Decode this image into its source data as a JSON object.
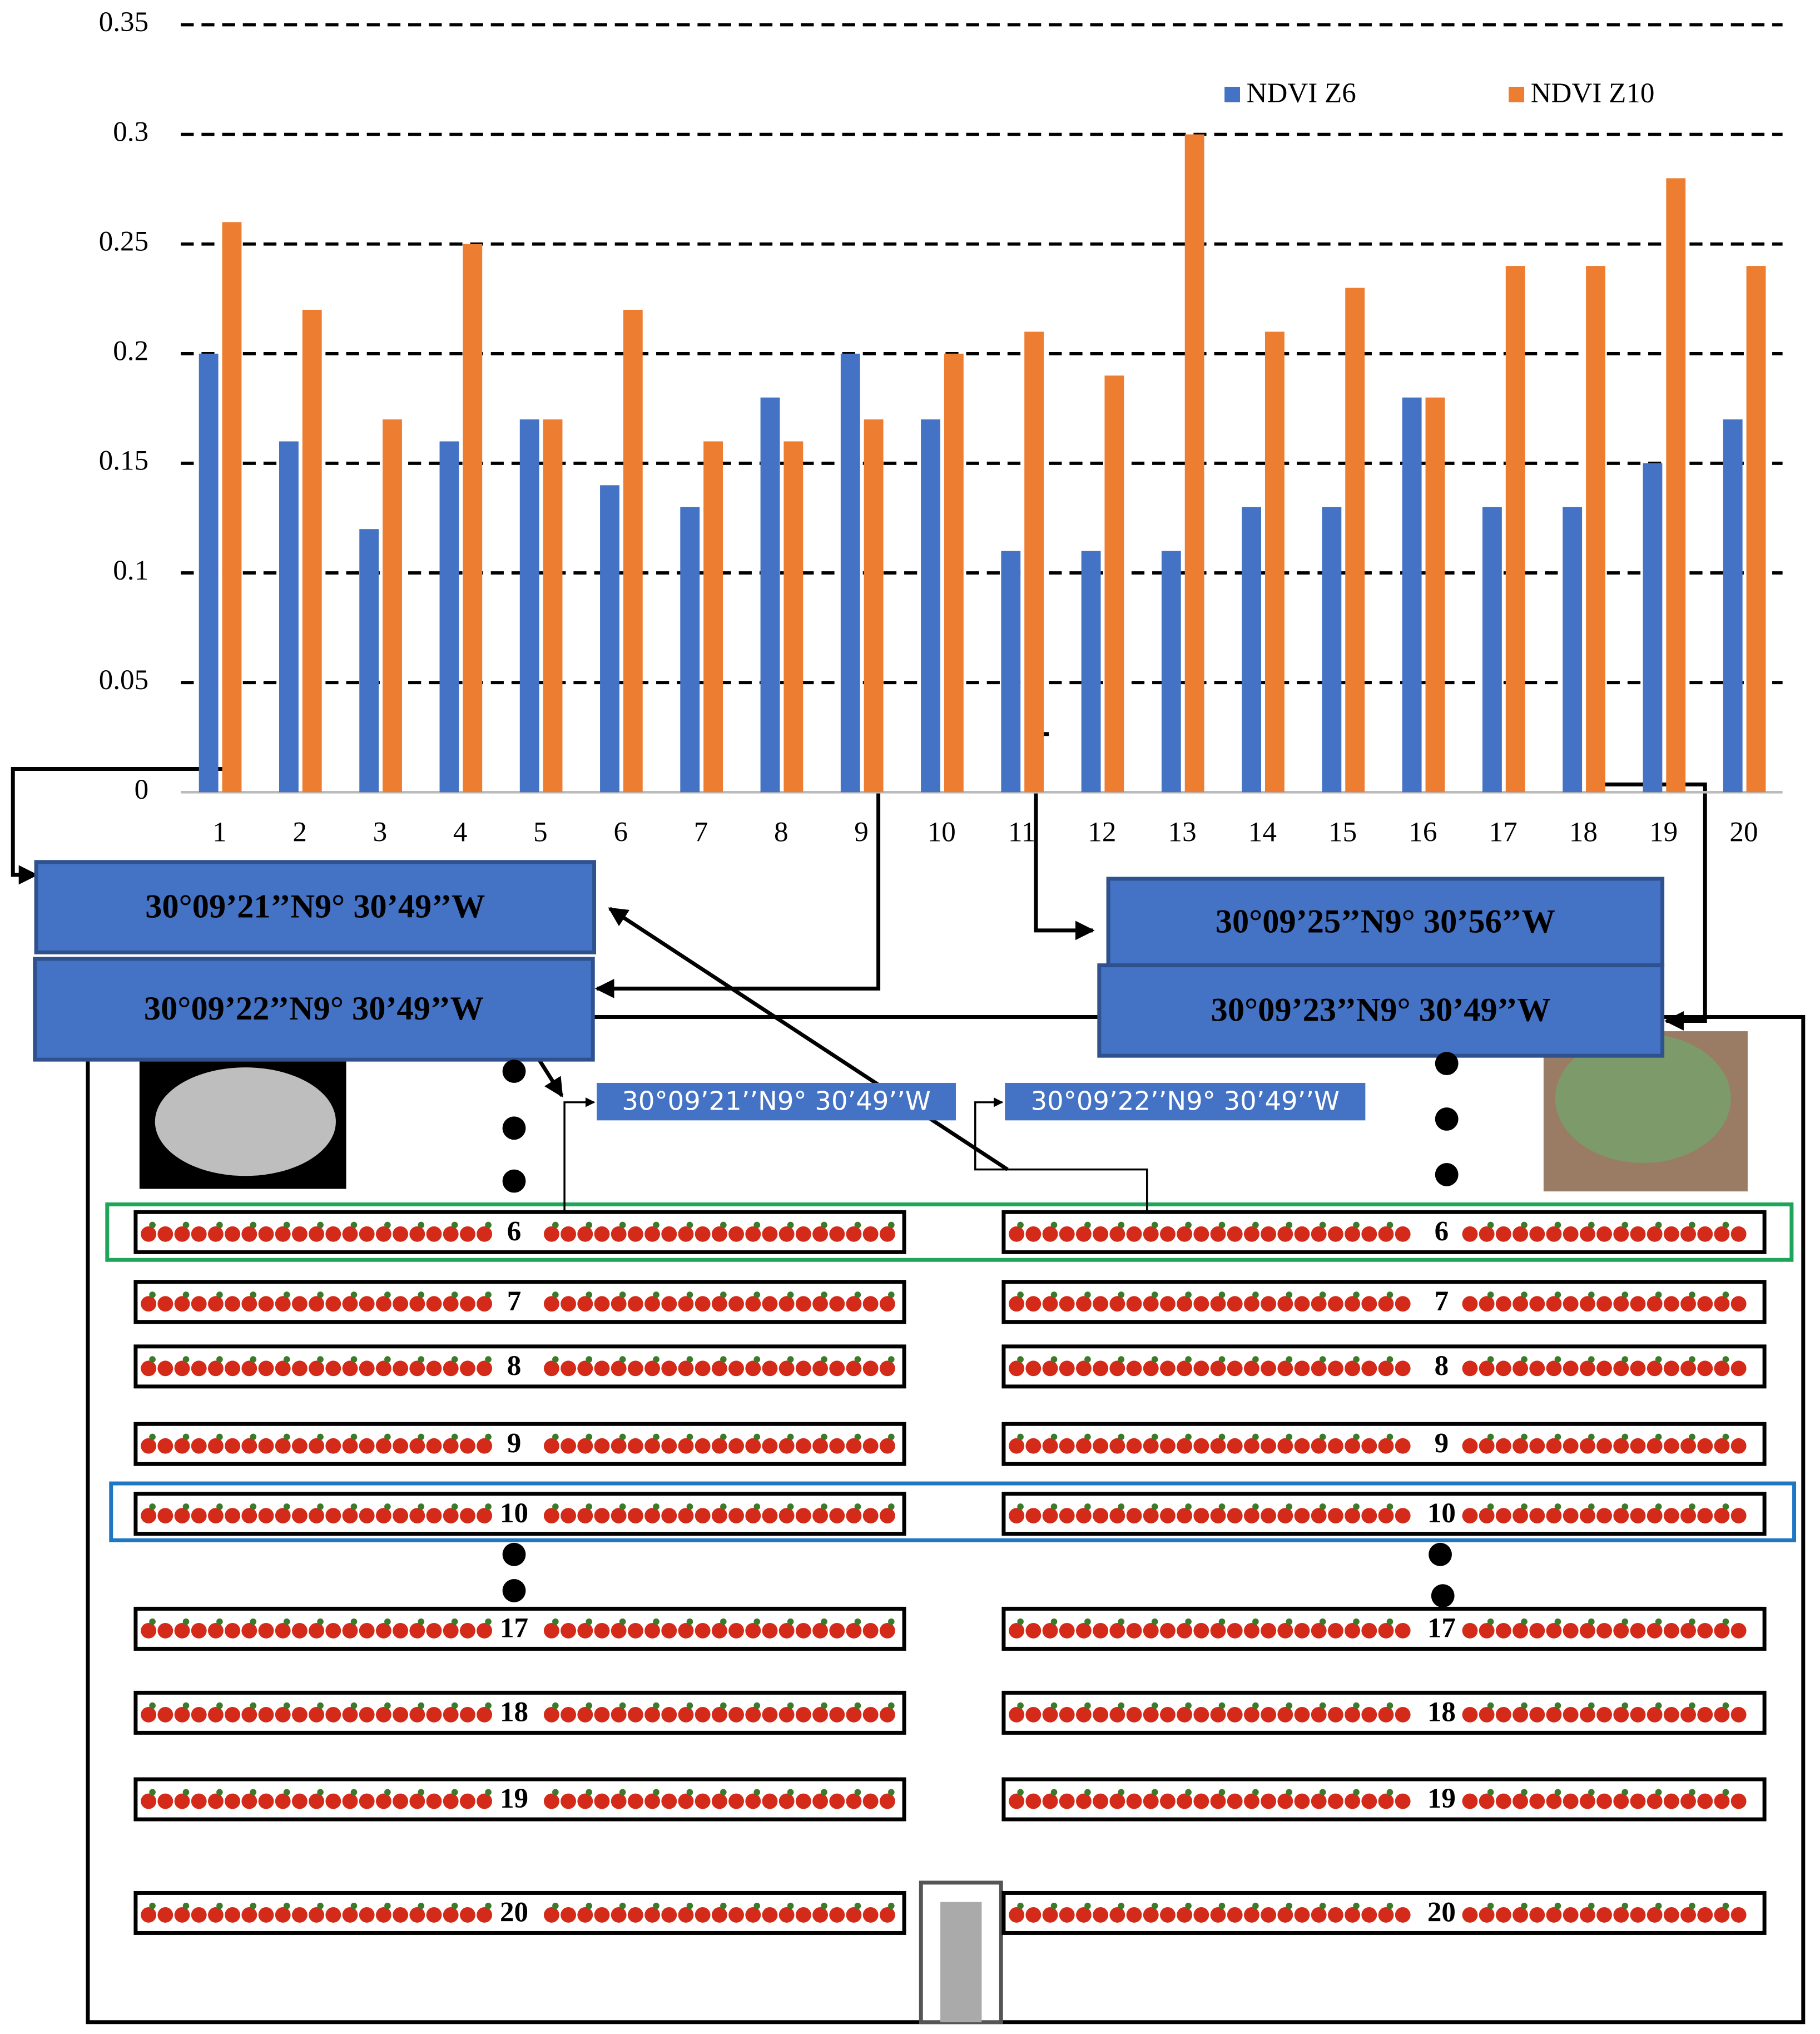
{
  "chart_data": {
    "type": "bar",
    "categories": [
      "1",
      "2",
      "3",
      "4",
      "5",
      "6",
      "7",
      "8",
      "9",
      "10",
      "11",
      "12",
      "13",
      "14",
      "15",
      "16",
      "17",
      "18",
      "19",
      "20"
    ],
    "series": [
      {
        "name": "NDVI Z6",
        "color": "#4472c4",
        "values": [
          0.2,
          0.16,
          0.12,
          0.16,
          0.17,
          0.14,
          0.13,
          0.18,
          0.2,
          0.17,
          0.11,
          0.11,
          0.11,
          0.13,
          0.13,
          0.18,
          0.13,
          0.13,
          0.15,
          0.17
        ]
      },
      {
        "name": "NDVI Z10",
        "color": "#ed7d31",
        "values": [
          0.26,
          0.22,
          0.17,
          0.25,
          0.17,
          0.22,
          0.16,
          0.16,
          0.17,
          0.2,
          0.21,
          0.19,
          0.3,
          0.21,
          0.23,
          0.18,
          0.24,
          0.24,
          0.28,
          0.24
        ]
      }
    ],
    "ylim": [
      0,
      0.35
    ],
    "yticks": [
      0,
      0.05,
      0.1,
      0.15,
      0.2,
      0.25,
      0.3,
      0.35
    ],
    "grid": true,
    "legend": "top-right"
  },
  "diagram": {
    "coord_boxes": [
      "30°09’21’’N9° 30’49’’W",
      "30°09’22’’N9° 30’49’’W",
      "30°09’25’’N9° 30’56’’W",
      "30°09’23’’N9° 30’49’’W"
    ],
    "small_boxes": [
      "30°09’21’’N9° 30’49’’W",
      "30°09’22’’N9° 30’49’’W"
    ],
    "rows": [
      "6",
      "7",
      "8",
      "9",
      "10",
      "17",
      "18",
      "19",
      "20"
    ]
  }
}
